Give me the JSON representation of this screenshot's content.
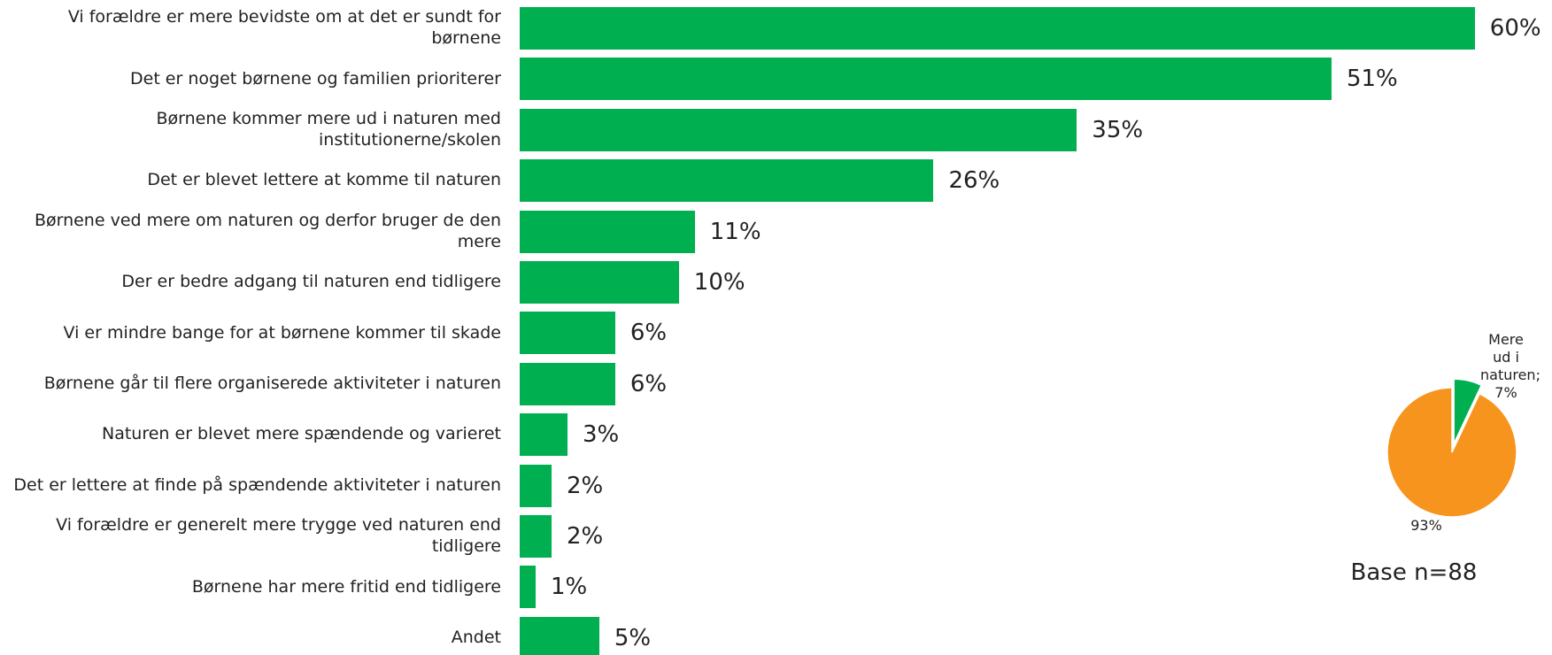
{
  "chart_data": [
    {
      "type": "bar",
      "categories": [
        "Vi forældre er mere bevidste om at det er sundt for børnene",
        "Det er noget børnene og familien prioriterer",
        "Børnene kommer mere ud i naturen med institutionerne/skolen",
        "Det er blevet lettere at komme til naturen",
        "Børnene ved mere om naturen og derfor bruger de den mere",
        "Der er bedre adgang til naturen end tidligere",
        "Vi er mindre bange for at børnene kommer til skade",
        "Børnene går til flere organiserede aktiviteter i naturen",
        "Naturen er blevet mere spændende og varieret",
        "Det er lettere at finde på spændende aktiviteter i naturen",
        "Vi forældre er generelt mere trygge ved naturen end tidligere",
        "Børnene har mere fritid end tidligere",
        "Andet"
      ],
      "values": [
        60,
        51,
        35,
        26,
        11,
        10,
        6,
        6,
        3,
        2,
        2,
        1,
        5
      ],
      "value_labels": [
        "60%",
        "51%",
        "35%",
        "26%",
        "11%",
        "10%",
        "6%",
        "6%",
        "3%",
        "2%",
        "2%",
        "1%",
        "5%"
      ],
      "color": "#00b050"
    },
    {
      "type": "pie",
      "values": [
        7,
        93
      ],
      "value_labels": [
        "Mere ud i naturen; 7%",
        "93%"
      ],
      "colors": [
        "#00b050",
        "#f7941d"
      ],
      "annotation": "Base n=88"
    }
  ]
}
